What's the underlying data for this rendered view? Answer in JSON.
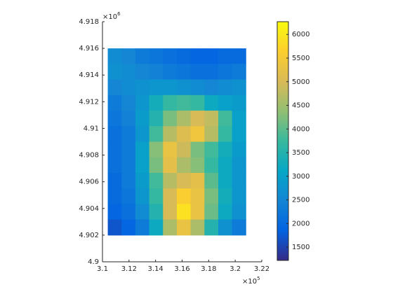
{
  "chart_data": {
    "type": "heatmap",
    "x_multiplier": {
      "base": "×10",
      "power": "5"
    },
    "y_multiplier": {
      "base": "×10",
      "power": "6"
    },
    "xlim": [
      310000,
      322000
    ],
    "xticks": [
      {
        "value": 310000,
        "label": "3.1"
      },
      {
        "value": 312000,
        "label": "3.12"
      },
      {
        "value": 314000,
        "label": "3.14"
      },
      {
        "value": 316000,
        "label": "3.16"
      },
      {
        "value": 318000,
        "label": "3.18"
      },
      {
        "value": 320000,
        "label": "3.2"
      },
      {
        "value": 322000,
        "label": "3.22"
      }
    ],
    "ylim": [
      4900000,
      4918000
    ],
    "yticks": [
      {
        "value": 4900000,
        "label": "4.9"
      },
      {
        "value": 4902000,
        "label": "4.902"
      },
      {
        "value": 4904000,
        "label": "4.904"
      },
      {
        "value": 4906000,
        "label": "4.906"
      },
      {
        "value": 4908000,
        "label": "4.908"
      },
      {
        "value": 4910000,
        "label": "4.91"
      },
      {
        "value": 4912000,
        "label": "4.912"
      },
      {
        "value": 4914000,
        "label": "4.914"
      },
      {
        "value": 4916000,
        "label": "4.916"
      },
      {
        "value": 4918000,
        "label": "4.918"
      }
    ],
    "image_xlim": [
      310400,
      320800
    ],
    "image_ylim": [
      4902000,
      4916000
    ],
    "z": [
      [
        2600,
        2500,
        2300,
        2200,
        2100,
        2000,
        1900,
        1900,
        2000,
        2000
      ],
      [
        2700,
        2600,
        2500,
        2400,
        2300,
        2200,
        2100,
        2100,
        2200,
        2300
      ],
      [
        2500,
        2600,
        2700,
        2800,
        2800,
        2700,
        2600,
        2500,
        2600,
        2700
      ],
      [
        2300,
        2500,
        2800,
        3300,
        3700,
        3800,
        3700,
        3200,
        3000,
        2900
      ],
      [
        2200,
        2400,
        2900,
        3500,
        4200,
        4600,
        5000,
        4800,
        3800,
        3000
      ],
      [
        2100,
        2300,
        2800,
        3800,
        4700,
        5100,
        5400,
        4700,
        3700,
        3000
      ],
      [
        2100,
        2300,
        3000,
        4300,
        5300,
        4900,
        4200,
        3800,
        3300,
        2900
      ],
      [
        2100,
        2300,
        3000,
        4200,
        5200,
        4600,
        4300,
        3700,
        3200,
        2800
      ],
      [
        2000,
        2300,
        2900,
        3800,
        4700,
        5000,
        5200,
        4000,
        3200,
        2800
      ],
      [
        2000,
        2200,
        2800,
        3700,
        5000,
        5600,
        5300,
        4200,
        3300,
        2800
      ],
      [
        1900,
        2100,
        2600,
        3500,
        5000,
        5900,
        5300,
        4100,
        3200,
        2700
      ],
      [
        1700,
        1900,
        2300,
        3200,
        4600,
        5300,
        4600,
        3500,
        2700,
        2300
      ]
    ],
    "clim": [
      1220,
      6270
    ],
    "cticks": [
      1500,
      2000,
      2500,
      3000,
      3500,
      4000,
      4500,
      5000,
      5500,
      6000
    ],
    "colormap": [
      "#352a87",
      "#0363e1",
      "#1485d4",
      "#06a7c6",
      "#38b99e",
      "#92bf73",
      "#d9ba56",
      "#fcce2e",
      "#f9fb0e"
    ]
  }
}
